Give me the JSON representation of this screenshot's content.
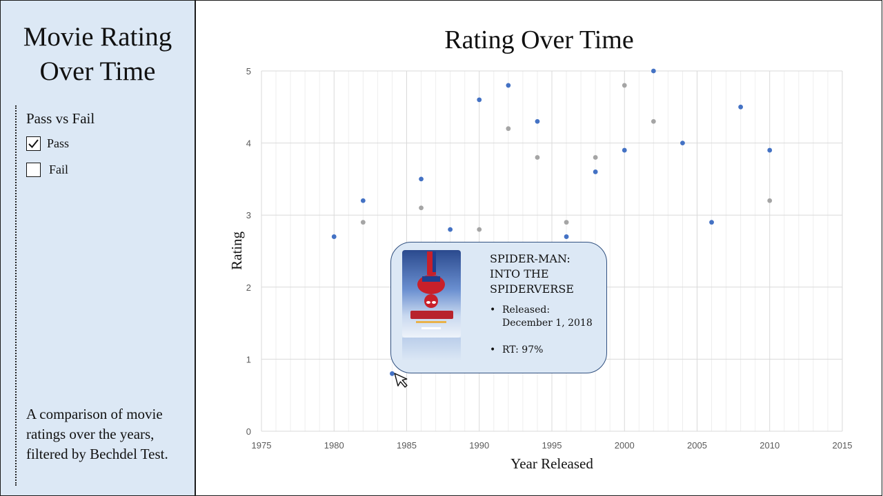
{
  "sidebar": {
    "title_line1": "Movie Rating",
    "title_line2": "Over Time",
    "filter_heading": "Pass vs Fail",
    "filters": [
      {
        "label": "Pass",
        "checked": true
      },
      {
        "label": "Fail",
        "checked": false
      }
    ],
    "description": "A comparison of movie ratings over the years, filtered by Bechdel Test."
  },
  "tooltip": {
    "title": "SPIDER-MAN: INTO THE SPIDERVERSE",
    "released_label": "Released:",
    "released_date": "December 1, 2018",
    "rt": "RT: 97%",
    "bullet": "•"
  },
  "chart_data": {
    "type": "scatter",
    "title": "Rating Over Time",
    "xlabel": "Year Released",
    "ylabel": "Rating",
    "xlim": [
      1975,
      2015
    ],
    "ylim": [
      0,
      5
    ],
    "x_ticks": [
      1975,
      1980,
      1985,
      1990,
      1995,
      2000,
      2005,
      2010,
      2015
    ],
    "y_ticks": [
      0,
      1,
      2,
      3,
      4,
      5
    ],
    "grid": true,
    "colors": {
      "pass": "#4472c4",
      "fail": "#a5a5a5"
    },
    "series": [
      {
        "color": "#4472c4",
        "points": [
          [
            1980,
            2.7
          ],
          [
            1982,
            3.2
          ],
          [
            1984,
            0.8
          ],
          [
            1986,
            3.5
          ],
          [
            1988,
            2.8
          ],
          [
            1990,
            4.6
          ],
          [
            1992,
            4.8
          ],
          [
            1994,
            4.3
          ],
          [
            1996,
            2.7
          ],
          [
            1998,
            3.6
          ],
          [
            2000,
            3.9
          ],
          [
            2002,
            5.0
          ],
          [
            2004,
            4.0
          ],
          [
            2006,
            2.9
          ],
          [
            2008,
            4.5
          ],
          [
            2010,
            3.9
          ]
        ]
      },
      {
        "color": "#a5a5a5",
        "points": [
          [
            1982,
            2.9
          ],
          [
            1986,
            3.1
          ],
          [
            1990,
            2.8
          ],
          [
            1992,
            4.2
          ],
          [
            1994,
            3.8
          ],
          [
            1996,
            2.9
          ],
          [
            1998,
            3.8
          ],
          [
            2000,
            4.8
          ],
          [
            2002,
            4.3
          ],
          [
            2010,
            3.2
          ]
        ]
      }
    ]
  }
}
